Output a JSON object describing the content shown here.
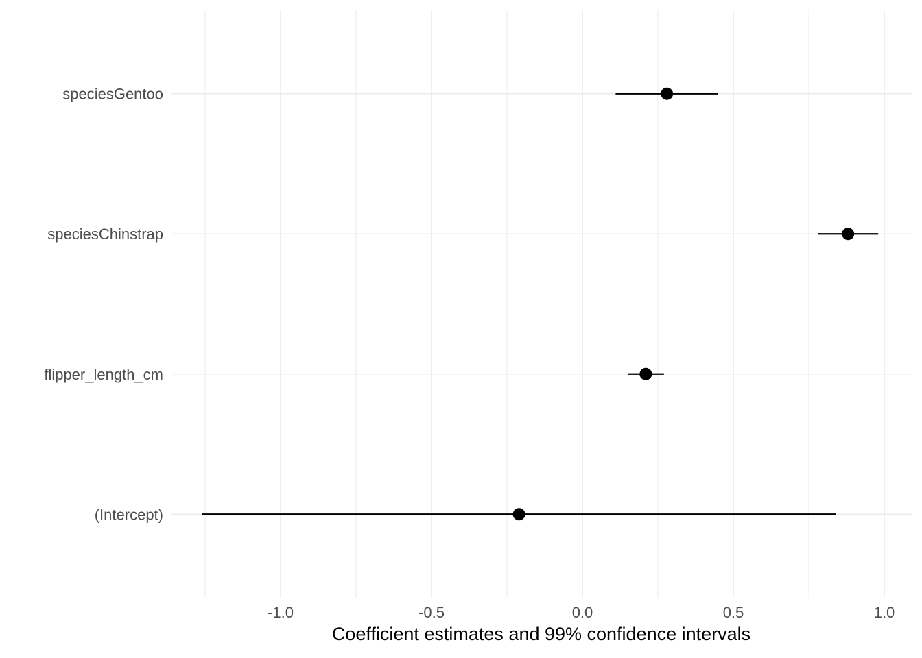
{
  "figure": {
    "background": "#ffffff"
  },
  "chart_data": {
    "type": "scatter",
    "subtype": "coefficient-plot-with-horizontal-error-bars",
    "title": "",
    "xlabel": "Coefficient estimates and 99% confidence intervals",
    "ylabel": "",
    "legend": false,
    "grid": "major-and-minor-x, major-y",
    "xlim": [
      -1.3636,
      1.0909
    ],
    "x_ticks": [
      -1.0,
      -0.5,
      0.0,
      0.5,
      1.0
    ],
    "x_tick_labels": [
      "-1.0",
      "-0.5",
      "0.0",
      "0.5",
      "1.0"
    ],
    "x_minor_ticks": [
      -1.25,
      -0.75,
      -0.25,
      0.25,
      0.75
    ],
    "categories_top_to_bottom": [
      "speciesGentoo",
      "speciesChinstrap",
      "flipper_length_cm",
      "(Intercept)"
    ],
    "series": [
      {
        "term": "speciesGentoo",
        "estimate": 0.28,
        "conf_low": 0.11,
        "conf_high": 0.45
      },
      {
        "term": "speciesChinstrap",
        "estimate": 0.88,
        "conf_low": 0.78,
        "conf_high": 0.98
      },
      {
        "term": "flipper_length_cm",
        "estimate": 0.21,
        "conf_low": 0.15,
        "conf_high": 0.27
      },
      {
        "term": "(Intercept)",
        "estimate": -0.21,
        "conf_low": -1.26,
        "conf_high": 0.84
      }
    ]
  },
  "colors": {
    "point": "#000000",
    "ci_line": "#000000",
    "grid": "#ebebeb",
    "background": "#ffffff",
    "axis_text": "#4d4d4d",
    "axis_title": "#000000"
  }
}
